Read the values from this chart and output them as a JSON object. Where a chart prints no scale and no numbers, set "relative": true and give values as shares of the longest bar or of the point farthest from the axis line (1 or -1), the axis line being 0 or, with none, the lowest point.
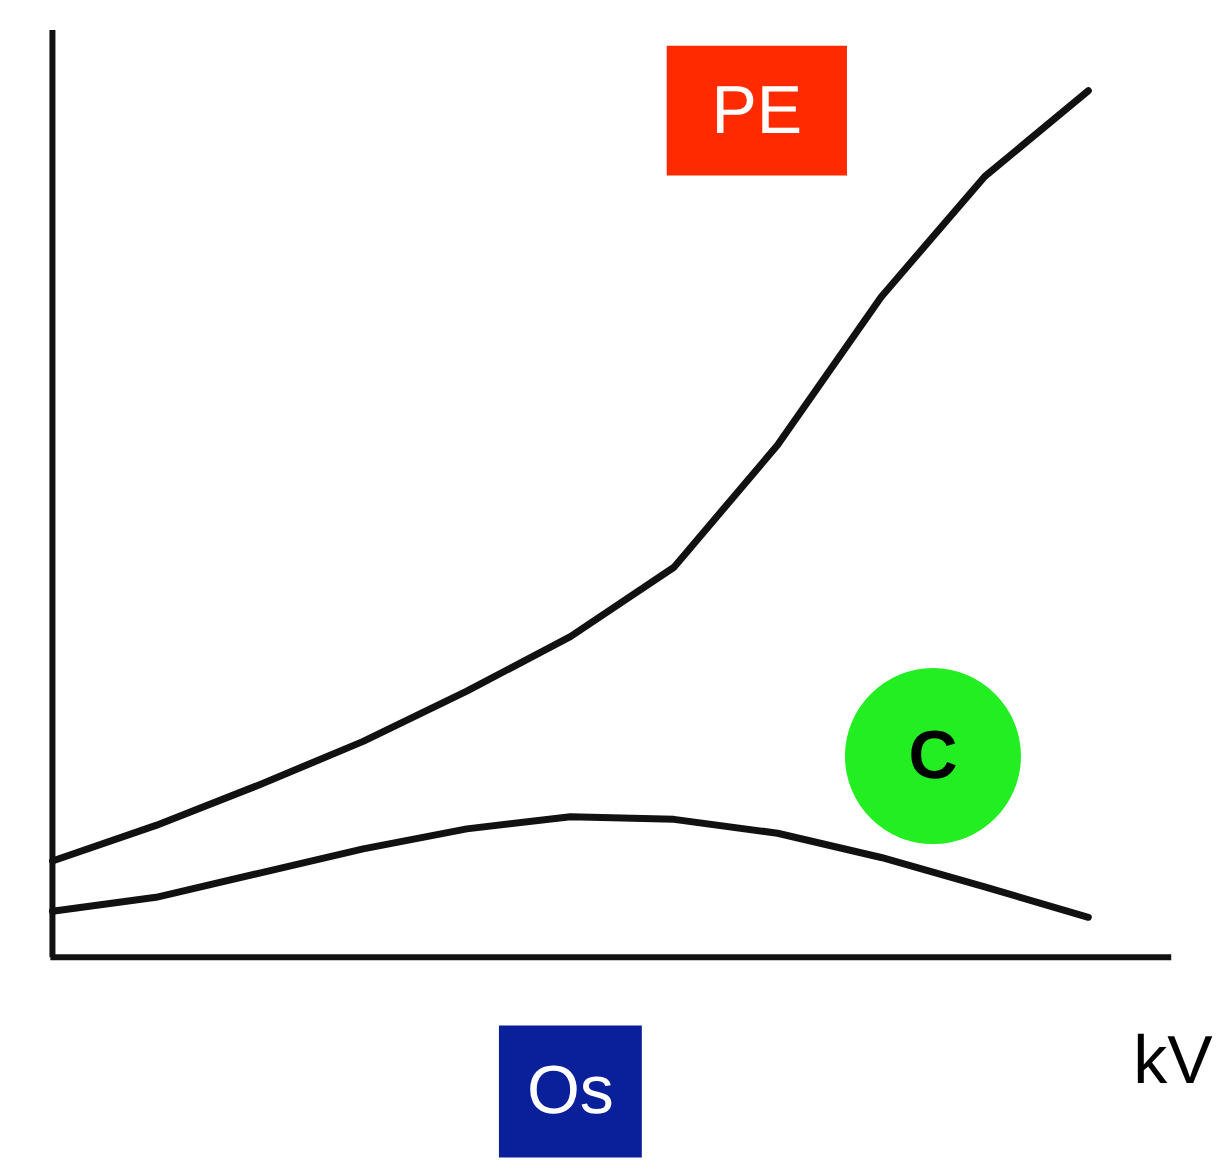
{
  "chart_data": {
    "type": "line",
    "relative": true,
    "xlabel": "kV",
    "categories": [
      null,
      null,
      null,
      null,
      null,
      null,
      null,
      null,
      null,
      null,
      null
    ],
    "series": [
      {
        "name": "PE",
        "color": "#111111",
        "values": [
          0.111,
          0.152,
          0.199,
          0.249,
          0.307,
          0.37,
          0.45,
          0.591,
          0.762,
          0.901,
          1
        ]
      },
      {
        "name": "C",
        "color": "#111111",
        "values": [
          0.053,
          0.069,
          0.097,
          0.125,
          0.148,
          0.162,
          0.159,
          0.143,
          0.115,
          0.081,
          0.046
        ]
      }
    ],
    "annotations": [
      "Os"
    ],
    "marker": "none",
    "line_style": "solid"
  }
}
